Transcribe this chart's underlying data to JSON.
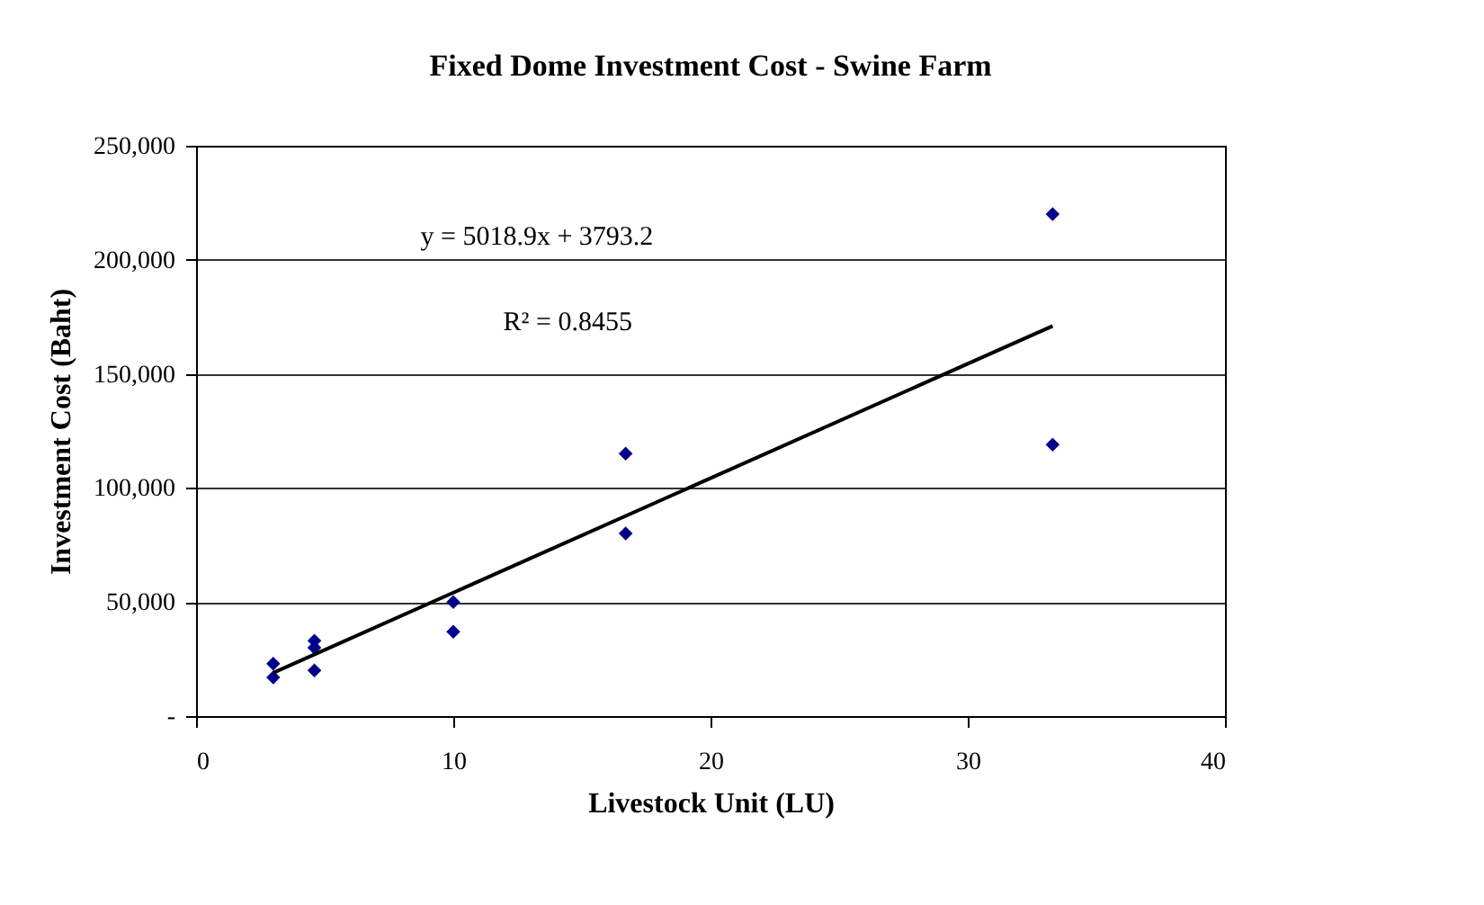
{
  "chart_data": {
    "type": "scatter",
    "title": "Fixed Dome Investment Cost - Swine Farm",
    "xlabel": "Livestock Unit (LU)",
    "ylabel": "Investment Cost (Baht)",
    "series": [
      {
        "color": "#00008b",
        "marker": "diamond",
        "x": [
          3,
          3,
          4.6,
          4.6,
          4.6,
          10,
          10,
          16.7,
          16.7,
          33.3,
          33.3
        ],
        "values": [
          23000,
          17000,
          33000,
          30000,
          20000,
          50000,
          37000,
          115000,
          80000,
          220000,
          119000
        ]
      },
      {
        "type": "line",
        "color": "#000000",
        "marker": "none",
        "line_style": "solid",
        "x": [
          3,
          33.3
        ],
        "values": [
          19000,
          171000
        ]
      }
    ],
    "annotations": [
      "y = 5018.9x + 3793.2",
      "R² = 0.8455"
    ],
    "xlim": [
      0,
      40
    ],
    "xticks": [
      0,
      10,
      20,
      30,
      40
    ],
    "ylim": [
      0,
      250000
    ],
    "yticks": [
      {
        "value": 0,
        "label": "-"
      },
      {
        "value": 50000,
        "label": "50,000"
      },
      {
        "value": 100000,
        "label": "100,000"
      },
      {
        "value": 150000,
        "label": "150,000"
      },
      {
        "value": 200000,
        "label": "200,000"
      },
      {
        "value": 250000,
        "label": "250,000"
      }
    ],
    "grid": "y"
  }
}
